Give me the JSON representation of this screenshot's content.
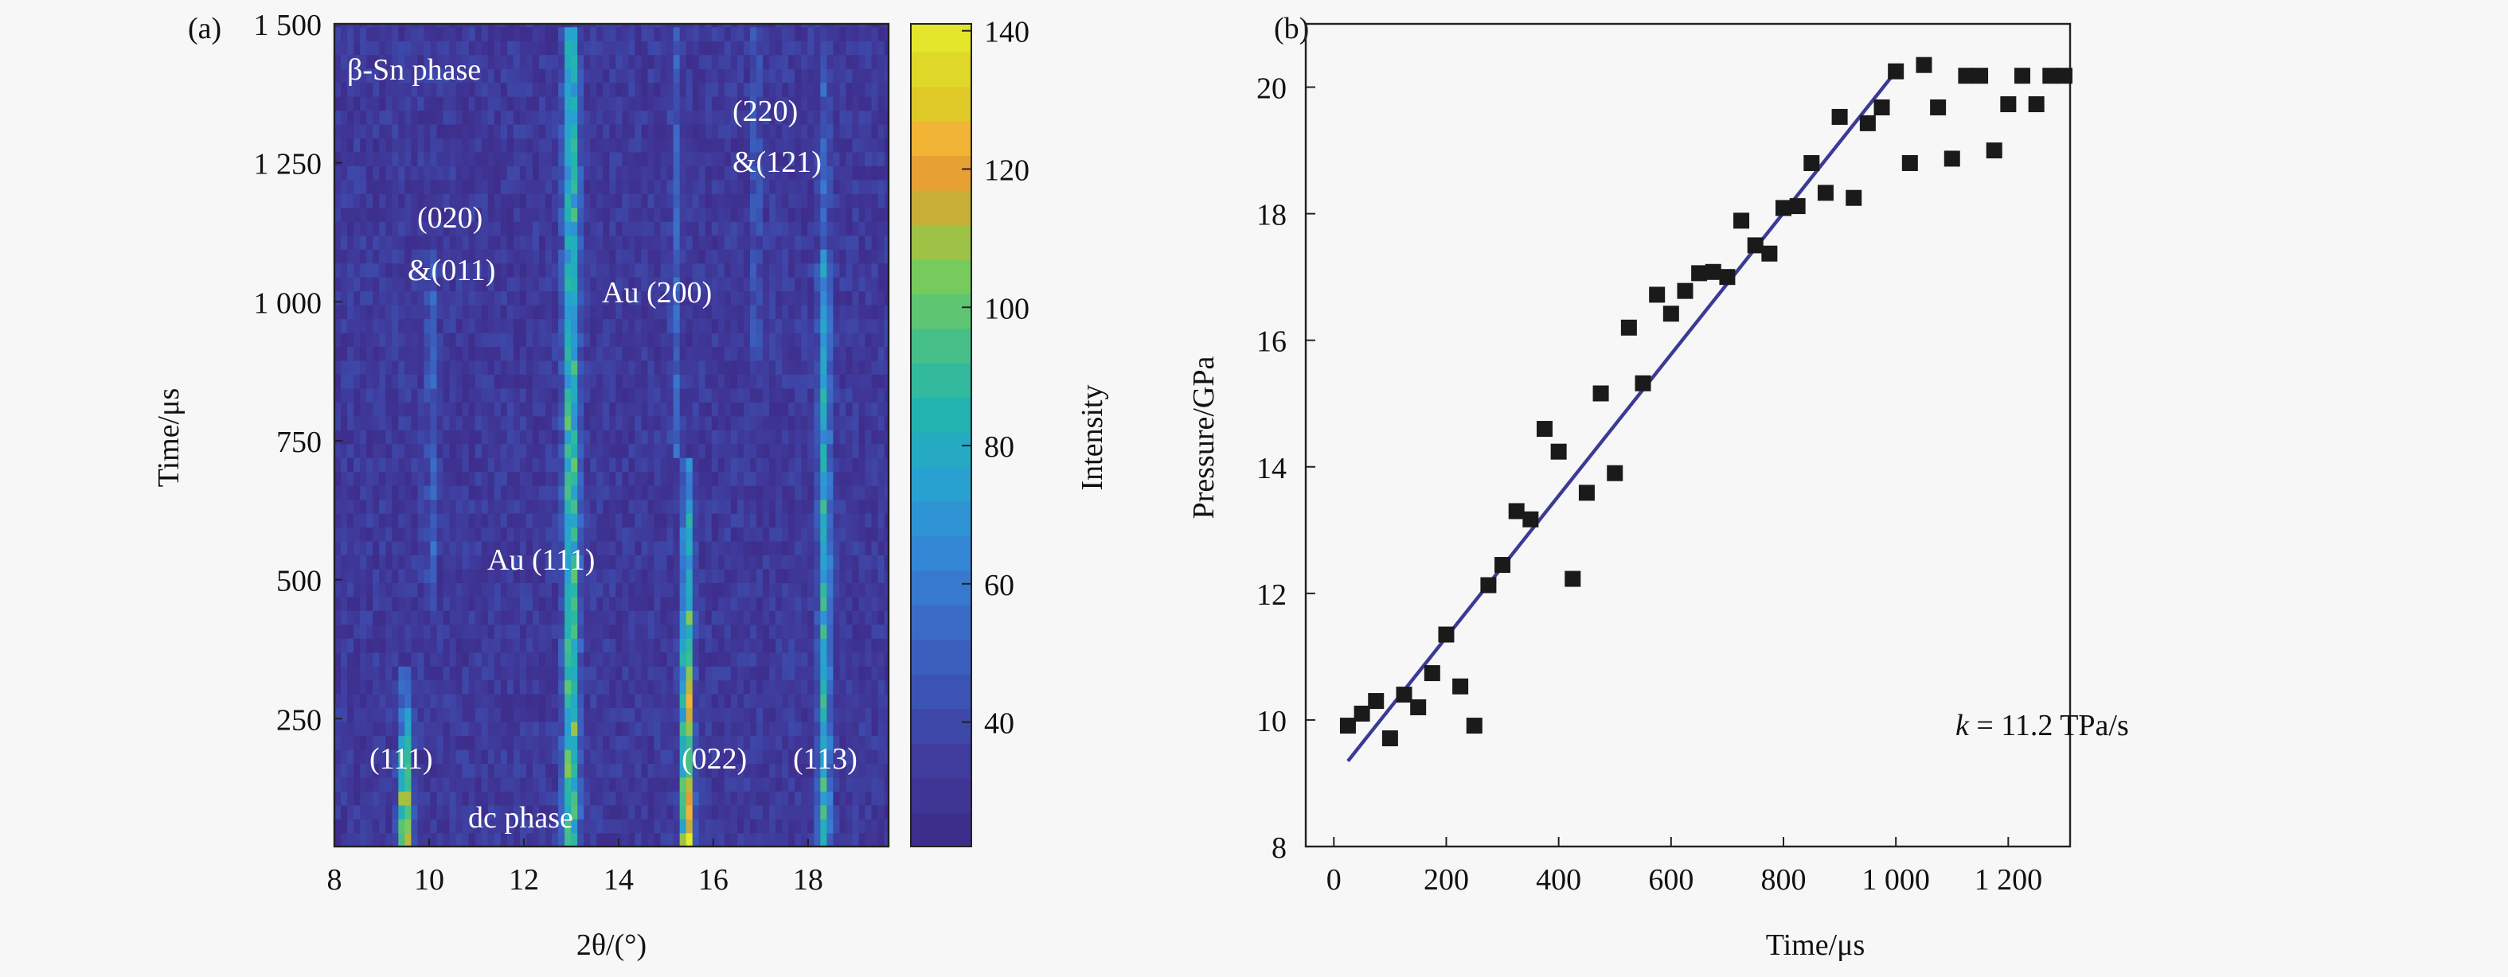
{
  "chart_data": [
    {
      "type": "heatmap",
      "panel_label": "(a)",
      "xlabel": "2θ/(°)",
      "ylabel": "Time/μs",
      "xlim": [
        8,
        19.7
      ],
      "ylim": [
        20,
        1500
      ],
      "x_ticks": [
        8,
        10,
        12,
        14,
        16,
        18
      ],
      "x_tick_labels": [
        "8",
        "10",
        "12",
        "14",
        "16",
        "18"
      ],
      "y_ticks": [
        250,
        500,
        750,
        1000,
        1250,
        1500
      ],
      "y_tick_labels": [
        "250",
        "500",
        "750",
        "1 000",
        "1 250",
        "1 500"
      ],
      "colorbar": {
        "label": "Intensity",
        "range": [
          22,
          141
        ],
        "ticks": [
          40,
          60,
          80,
          100,
          120,
          140
        ],
        "tick_labels": [
          "40",
          "60",
          "80",
          "100",
          "120",
          "140"
        ],
        "colormap": [
          [
            22,
            "#3e2a88"
          ],
          [
            35,
            "#3f3d9e"
          ],
          [
            45,
            "#3b55b4"
          ],
          [
            55,
            "#3a6cc8"
          ],
          [
            65,
            "#3488d6"
          ],
          [
            75,
            "#27a2d0"
          ],
          [
            85,
            "#22b4ae"
          ],
          [
            95,
            "#48c086"
          ],
          [
            105,
            "#79cb5a"
          ],
          [
            112,
            "#b3bd3a"
          ],
          [
            118,
            "#e39a32"
          ],
          [
            124,
            "#f4b236"
          ],
          [
            130,
            "#dccb28"
          ],
          [
            141,
            "#e4ea2a"
          ]
        ]
      },
      "background_intensity": 30,
      "peaks": [
        {
          "center": 9.5,
          "width": 0.13,
          "t_range": [
            20,
            340
          ],
          "amp": [
            110,
            20
          ]
        },
        {
          "center": 10.05,
          "width": 0.09,
          "t_range": [
            450,
            1100
          ],
          "amp": [
            22,
            22
          ]
        },
        {
          "center": 13.0,
          "width": 0.16,
          "t_range": [
            20,
            1500
          ],
          "amp": [
            70,
            55
          ]
        },
        {
          "center": 15.45,
          "width": 0.12,
          "t_range": [
            20,
            720
          ],
          "amp": [
            115,
            35
          ]
        },
        {
          "center": 15.2,
          "width": 0.09,
          "t_range": [
            720,
            1500
          ],
          "amp": [
            20,
            18
          ]
        },
        {
          "center": 16.9,
          "width": 0.09,
          "t_range": [
            900,
            1500
          ],
          "amp": [
            16,
            16
          ]
        },
        {
          "center": 18.35,
          "width": 0.13,
          "t_range": [
            20,
            1100
          ],
          "amp": [
            55,
            45
          ]
        },
        {
          "center": 18.35,
          "width": 0.1,
          "t_range": [
            1100,
            1500
          ],
          "amp": [
            25,
            15
          ]
        }
      ],
      "annotations": {
        "beta_sn": "β-Sn phase",
        "p020": "(020)",
        "p011": "&(011)",
        "au200": "Au (200)",
        "p220": "(220)",
        "p121": "&(121)",
        "au111": "Au (111)",
        "dc111": "(111)",
        "dc_phase": "dc phase",
        "p022": "(022)",
        "p113": "(113)"
      }
    },
    {
      "type": "scatter",
      "panel_label": "(b)",
      "xlabel": "Time/μs",
      "ylabel": "Pressure/GPa",
      "xlim": [
        -50,
        1310
      ],
      "ylim": [
        8,
        21
      ],
      "x_ticks": [
        0,
        200,
        400,
        600,
        800,
        1000,
        1200
      ],
      "x_tick_labels": [
        "0",
        "200",
        "400",
        "600",
        "800",
        "1 000",
        "1 200"
      ],
      "y_ticks": [
        8,
        10,
        12,
        14,
        16,
        18,
        20
      ],
      "y_tick_labels": [
        "8",
        "10",
        "12",
        "14",
        "16",
        "18",
        "20"
      ],
      "annotation": "k = 11.2 TPa/s",
      "annotation_k": "k",
      "annotation_rest": " = 11.2 TPa/s",
      "fit_line": {
        "x": [
          25,
          1000
        ],
        "y": [
          9.35,
          20.25
        ],
        "color": "#3b3a96"
      },
      "marker_color": "#1a1a1a",
      "x": [
        25,
        50,
        75,
        100,
        125,
        150,
        175,
        200,
        225,
        250,
        275,
        300,
        325,
        350,
        375,
        400,
        425,
        450,
        475,
        500,
        525,
        550,
        575,
        600,
        625,
        650,
        675,
        700,
        725,
        750,
        775,
        800,
        825,
        850,
        875,
        900,
        925,
        950,
        975,
        1000,
        1025,
        1050,
        1075,
        1100,
        1125,
        1150,
        1175,
        1200,
        1225,
        1250,
        1275,
        1300
      ],
      "y": [
        9.91,
        10.1,
        10.3,
        9.71,
        10.4,
        10.2,
        10.74,
        11.35,
        10.53,
        9.91,
        12.13,
        12.45,
        13.3,
        13.17,
        14.6,
        14.24,
        12.23,
        13.59,
        15.16,
        13.9,
        16.2,
        15.32,
        16.72,
        16.42,
        16.78,
        17.06,
        17.08,
        17.0,
        17.89,
        17.5,
        17.37,
        18.09,
        18.12,
        18.8,
        18.33,
        19.53,
        18.25,
        19.43,
        19.68,
        20.25,
        18.8,
        20.35,
        19.68,
        18.87,
        20.18,
        20.18,
        19.0,
        19.73,
        20.18,
        19.73,
        20.18,
        20.18
      ]
    }
  ]
}
